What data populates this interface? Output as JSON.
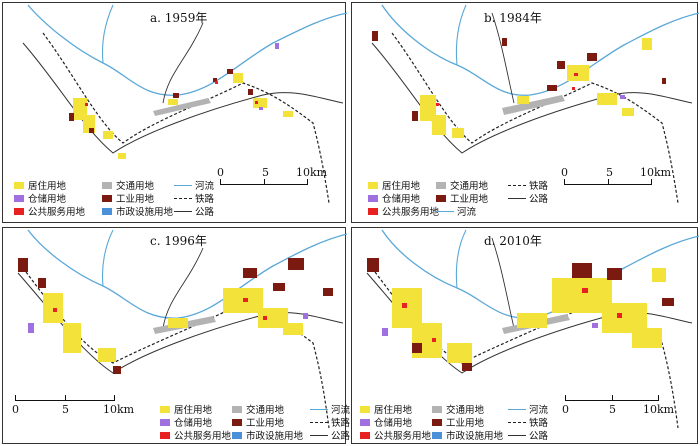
{
  "panels": [
    {
      "title": "a. 1959年"
    },
    {
      "title": "b. 1984年"
    },
    {
      "title": "c. 1996年"
    },
    {
      "title": "d. 2010年"
    }
  ],
  "legend": {
    "residential": "居住用地",
    "transport": "交通用地",
    "river": "河流",
    "storage": "仓储用地",
    "industrial": "工业用地",
    "railway": "铁路",
    "public_service": "公共服务用地",
    "municipal": "市政设施用地",
    "road": "公路"
  },
  "scale": {
    "t0": "0",
    "t5": "5",
    "t10": "10km"
  },
  "colors": {
    "residential": "#f2e23a",
    "transport": "#b3b3b3",
    "river": "#5aa8d8",
    "storage": "#a070e0",
    "industrial": "#7a1a10",
    "public_service": "#e82020",
    "municipal": "#4a90d8",
    "railway": "#222222",
    "road": "#333333"
  }
}
